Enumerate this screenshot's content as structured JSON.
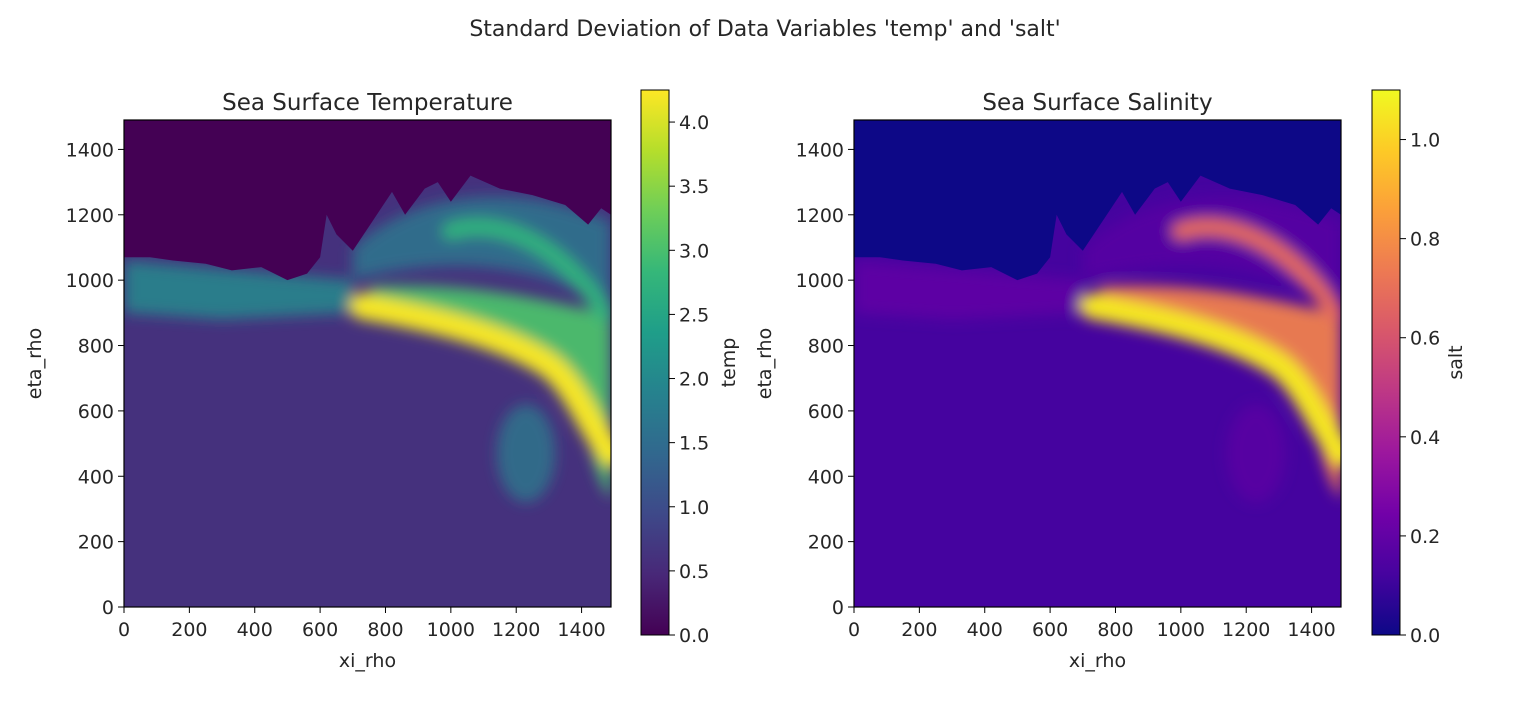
{
  "figure_title": "Standard Deviation of Data Variables 'temp' and 'salt'",
  "chart_data": [
    {
      "type": "heatmap",
      "title": "Sea Surface Temperature",
      "xlabel": "xi_rho",
      "ylabel": "eta_rho",
      "xlim": [
        0,
        1490
      ],
      "ylim": [
        0,
        1490
      ],
      "xticks": [
        "0",
        "200",
        "400",
        "600",
        "800",
        "1000",
        "1200",
        "1400"
      ],
      "yticks": [
        "0",
        "200",
        "400",
        "600",
        "800",
        "1000",
        "1200",
        "1400"
      ],
      "colormap": "viridis",
      "colorbar": {
        "label": "temp",
        "range": [
          0.0,
          4.25
        ],
        "ticks": [
          "0.0",
          "0.5",
          "1.0",
          "1.5",
          "2.0",
          "2.5",
          "3.0",
          "3.5",
          "4.0"
        ]
      },
      "features": {
        "land_mask_value": 0.0,
        "background_level": 0.6,
        "coastal_band_level": 2.5,
        "peak_level": 4.2
      }
    },
    {
      "type": "heatmap",
      "title": "Sea Surface Salinity",
      "xlabel": "xi_rho",
      "ylabel": "eta_rho",
      "xlim": [
        0,
        1490
      ],
      "ylim": [
        0,
        1490
      ],
      "xticks": [
        "0",
        "200",
        "400",
        "600",
        "800",
        "1000",
        "1200",
        "1400"
      ],
      "yticks": [
        "0",
        "200",
        "400",
        "600",
        "800",
        "1000",
        "1200",
        "1400"
      ],
      "colormap": "plasma",
      "colorbar": {
        "label": "salt",
        "range": [
          0.0,
          1.1
        ],
        "ticks": [
          "0.0",
          "0.2",
          "0.4",
          "0.6",
          "0.8",
          "1.0"
        ]
      },
      "features": {
        "land_mask_value": 0.0,
        "background_level": 0.12,
        "coastal_band_level": 0.25,
        "peak_level": 1.05
      }
    }
  ]
}
